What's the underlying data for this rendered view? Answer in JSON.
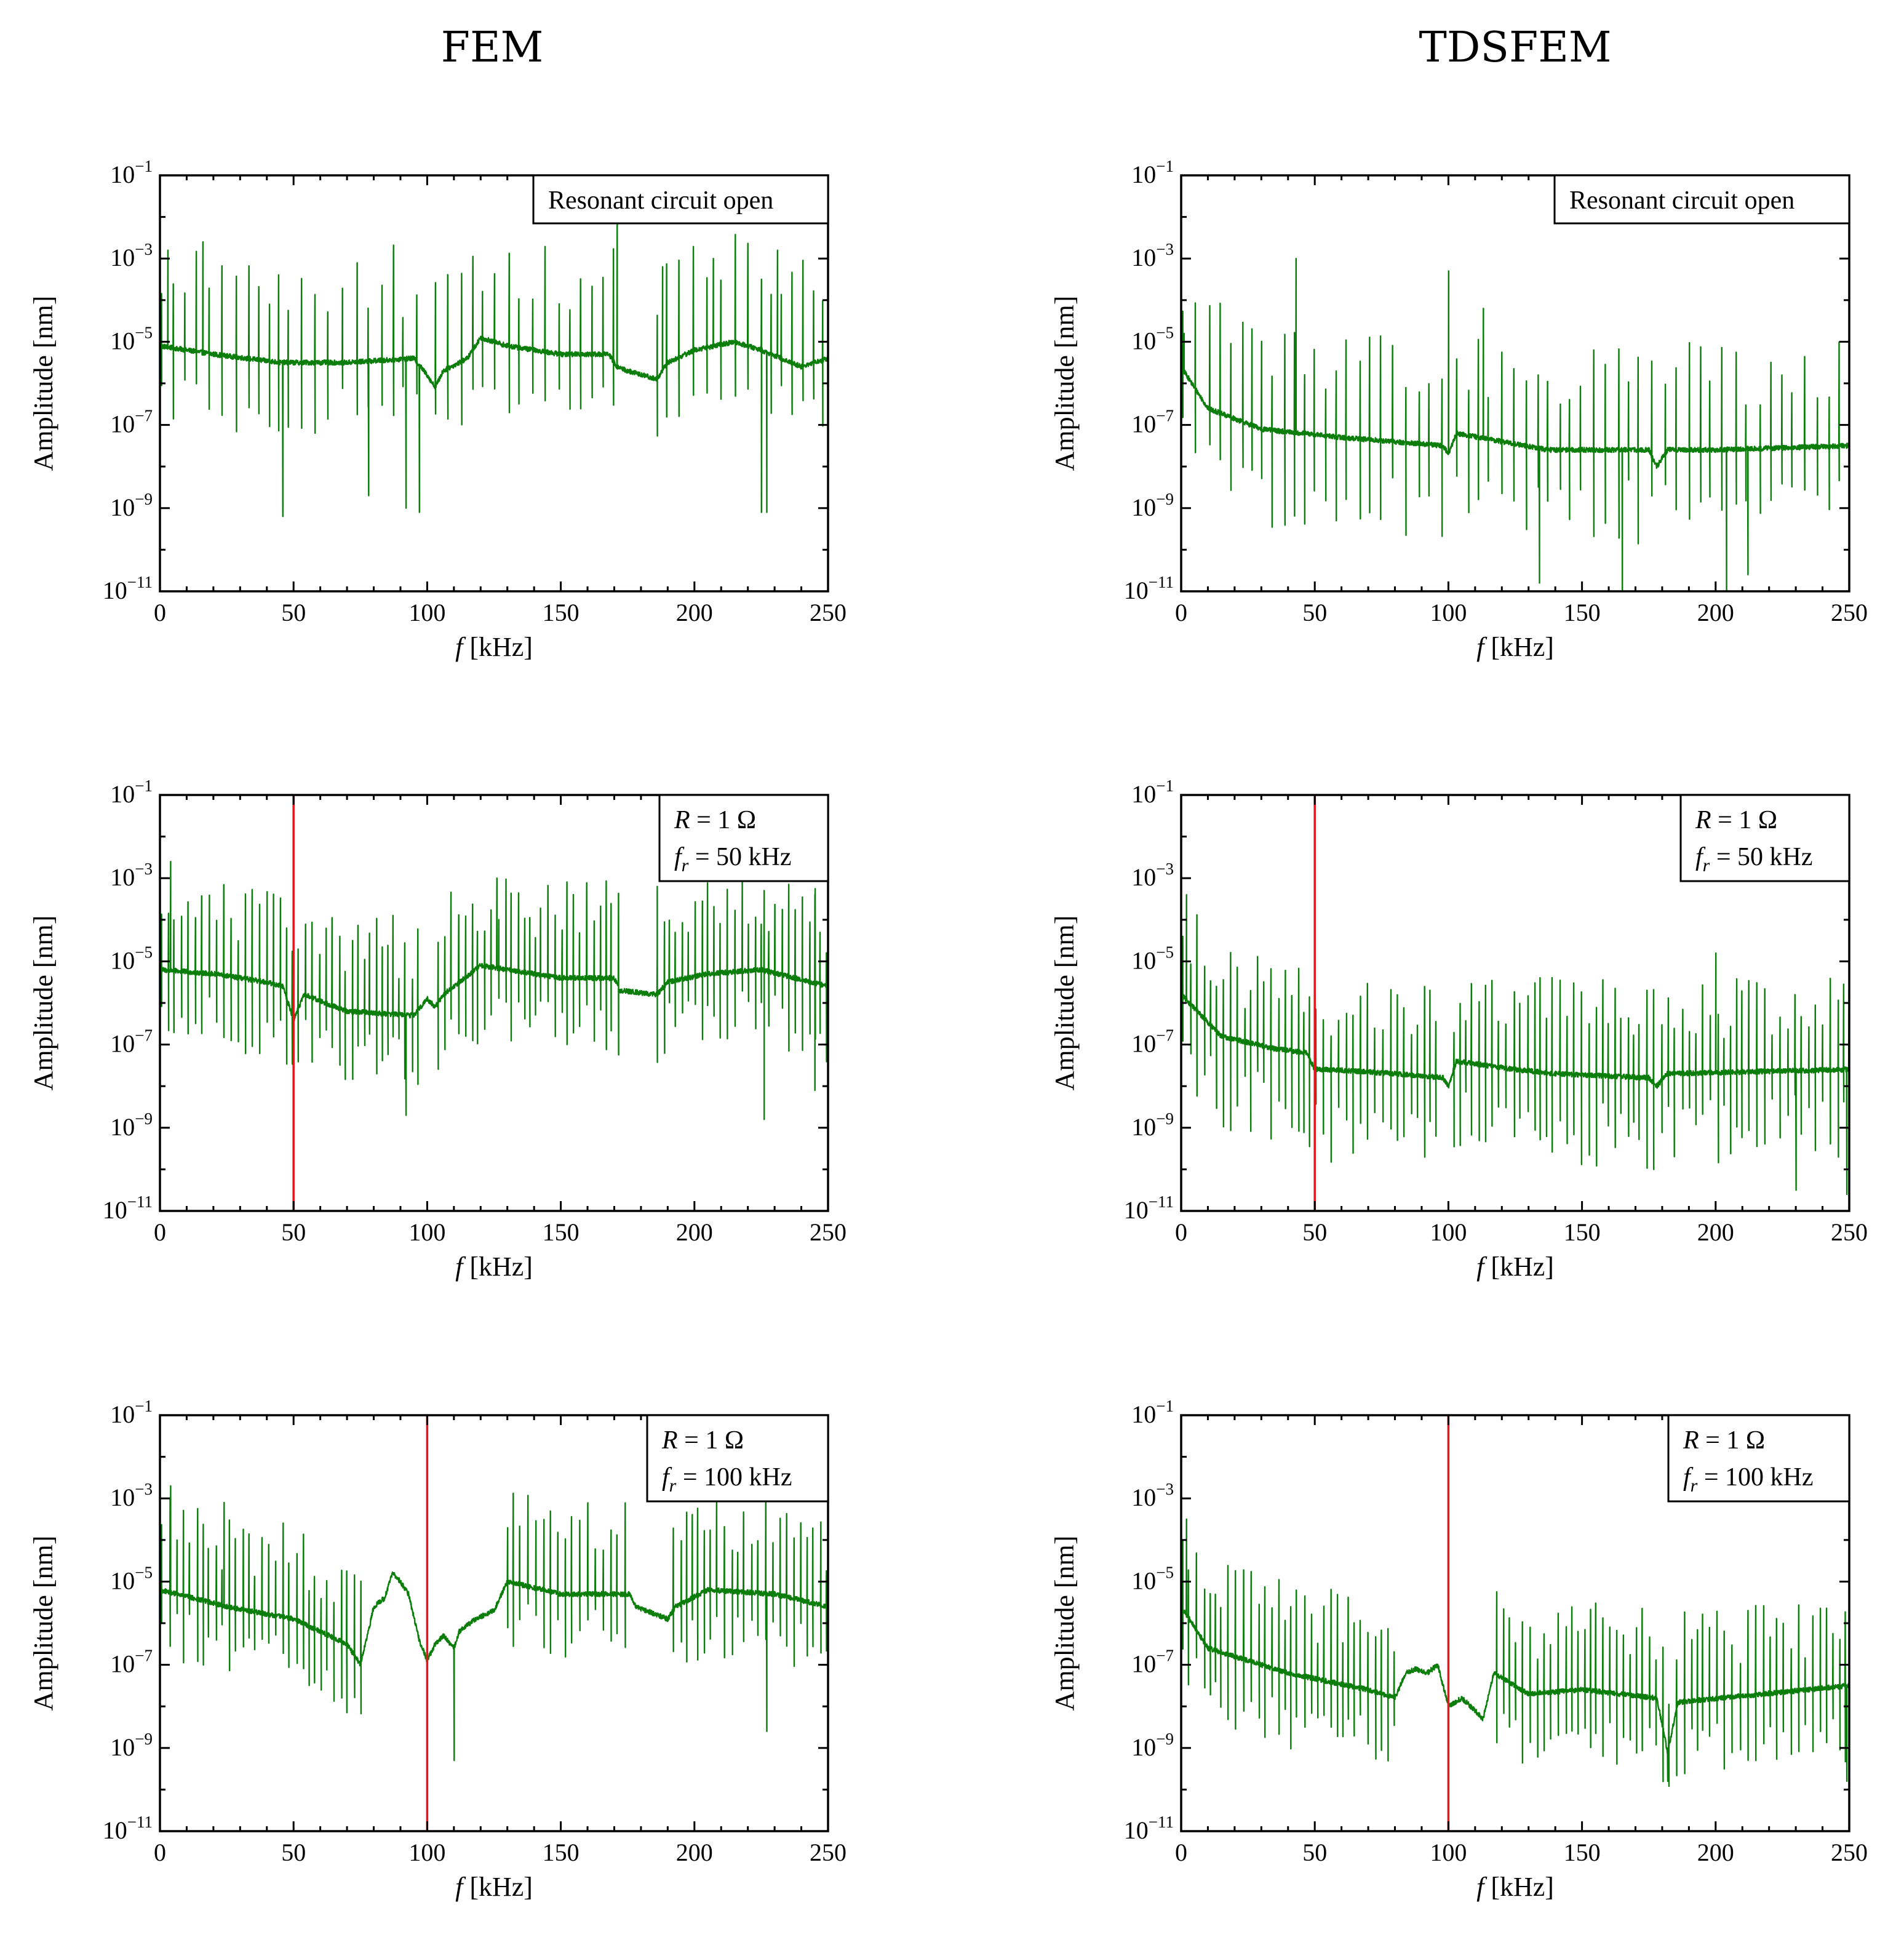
{
  "figure": {
    "column_titles": [
      "FEM",
      "TDSFEM"
    ]
  },
  "chart_data": [
    {
      "id": "fem-open",
      "type": "line",
      "column": "FEM",
      "xlabel_italic": "f",
      "xlabel_unit": "[kHz]",
      "ylabel": "Amplitude [nm]",
      "xlim": [
        0,
        250
      ],
      "ylim_log10": [
        -11,
        -1
      ],
      "x_ticks": [
        "0",
        "50",
        "100",
        "150",
        "200",
        "250"
      ],
      "y_tick_base": "10",
      "y_tick_exponents": [
        "−1",
        "−3",
        "−5",
        "−7",
        "−9",
        "−11"
      ],
      "legend": [
        "Resonant circuit open"
      ],
      "legend_italic": [],
      "marker_x": null,
      "series": [
        {
          "name": "amplitude",
          "color": "#0b7d0b",
          "profile_log10": [
            [
              0,
              -5.1
            ],
            [
              20,
              -5.3
            ],
            [
              45,
              -5.5
            ],
            [
              70,
              -5.5
            ],
            [
              95,
              -5.4
            ],
            [
              100,
              -5.8
            ],
            [
              103,
              -6.1
            ],
            [
              106,
              -5.7
            ],
            [
              115,
              -5.4
            ],
            [
              120,
              -4.9
            ],
            [
              130,
              -5.1
            ],
            [
              150,
              -5.3
            ],
            [
              168,
              -5.3
            ],
            [
              171,
              -5.6
            ],
            [
              175,
              -5.7
            ],
            [
              186,
              -5.9
            ],
            [
              190,
              -5.5
            ],
            [
              200,
              -5.2
            ],
            [
              215,
              -5.0
            ],
            [
              225,
              -5.2
            ],
            [
              240,
              -5.6
            ],
            [
              250,
              -5.4
            ]
          ],
          "peak_spacing_khz": 4.4,
          "peak_height_decades": [
            1.0,
            2.7
          ],
          "dip_depth_decades": [
            0.6,
            1.8
          ],
          "quiet_ranges": [
            [
              98,
              103
            ],
            [
              172,
              186
            ]
          ],
          "spikes": [
            [
              3,
              -2.8
            ],
            [
              16,
              -2.6
            ],
            [
              171,
              -1.8
            ],
            [
              188,
              -3.2
            ],
            [
              207,
              -3.0
            ],
            [
              231,
              -2.8
            ]
          ],
          "deep_dips": [
            [
              46,
              -9.2
            ],
            [
              78,
              -8.7
            ],
            [
              92,
              -9.0
            ],
            [
              97,
              -9.1
            ],
            [
              225,
              -9.1
            ],
            [
              227,
              -9.1
            ]
          ]
        }
      ]
    },
    {
      "id": "tdsfem-open",
      "type": "line",
      "column": "TDSFEM",
      "xlabel_italic": "f",
      "xlabel_unit": "[kHz]",
      "ylabel": "Amplitude [nm]",
      "xlim": [
        0,
        250
      ],
      "ylim_log10": [
        -11,
        -1
      ],
      "x_ticks": [
        "0",
        "50",
        "100",
        "150",
        "200",
        "250"
      ],
      "y_tick_base": "10",
      "y_tick_exponents": [
        "−1",
        "−3",
        "−5",
        "−7",
        "−9",
        "−11"
      ],
      "legend": [
        "Resonant circuit open"
      ],
      "legend_italic": [],
      "marker_x": null,
      "series": [
        {
          "name": "amplitude",
          "color": "#0b7d0b",
          "profile_log10": [
            [
              0,
              -5.6
            ],
            [
              10,
              -6.6
            ],
            [
              30,
              -7.1
            ],
            [
              60,
              -7.3
            ],
            [
              98,
              -7.5
            ],
            [
              100,
              -7.7
            ],
            [
              103,
              -7.2
            ],
            [
              120,
              -7.4
            ],
            [
              137,
              -7.6
            ],
            [
              150,
              -7.6
            ],
            [
              175,
              -7.6
            ],
            [
              178,
              -8.0
            ],
            [
              182,
              -7.6
            ],
            [
              200,
              -7.6
            ],
            [
              250,
              -7.5
            ]
          ],
          "peak_spacing_khz": 4.4,
          "peak_height_decades": [
            1.0,
            2.6
          ],
          "dip_depth_decades": [
            0.7,
            2.3
          ],
          "quiet_ranges": [
            [
              98,
              102
            ]
          ],
          "spikes": [
            [
              1,
              -4.8
            ],
            [
              43,
              -3.0
            ],
            [
              100,
              -3.3
            ],
            [
              113,
              -4.2
            ]
          ],
          "deep_dips": [
            [
              134,
              -10.8
            ],
            [
              165,
              -11.0
            ],
            [
              204,
              -11.0
            ],
            [
              212,
              -10.6
            ]
          ]
        }
      ]
    },
    {
      "id": "fem-50",
      "type": "line",
      "column": "FEM",
      "xlabel_italic": "f",
      "xlabel_unit": "[kHz]",
      "ylabel": "Amplitude [nm]",
      "xlim": [
        0,
        250
      ],
      "ylim_log10": [
        -11,
        -1
      ],
      "x_ticks": [
        "0",
        "50",
        "100",
        "150",
        "200",
        "250"
      ],
      "y_tick_base": "10",
      "y_tick_exponents": [
        "−1",
        "−3",
        "−5",
        "−7",
        "−9",
        "−11"
      ],
      "legend": [
        "R = 1 Ω",
        "fr = 50 kHz"
      ],
      "legend_italic": [
        "R",
        "f"
      ],
      "marker_x": 50,
      "series": [
        {
          "name": "amplitude",
          "color": "#0b7d0b",
          "profile_log10": [
            [
              0,
              -5.2
            ],
            [
              20,
              -5.3
            ],
            [
              40,
              -5.5
            ],
            [
              46,
              -5.6
            ],
            [
              50,
              -6.4
            ],
            [
              54,
              -5.8
            ],
            [
              70,
              -6.2
            ],
            [
              95,
              -6.3
            ],
            [
              100,
              -5.9
            ],
            [
              103,
              -6.1
            ],
            [
              106,
              -5.8
            ],
            [
              120,
              -5.1
            ],
            [
              150,
              -5.4
            ],
            [
              170,
              -5.4
            ],
            [
              172,
              -5.7
            ],
            [
              186,
              -5.8
            ],
            [
              190,
              -5.5
            ],
            [
              205,
              -5.3
            ],
            [
              225,
              -5.2
            ],
            [
              250,
              -5.6
            ]
          ],
          "peak_spacing_khz": 2.3,
          "peak_height_decades": [
            0.8,
            2.4
          ],
          "dip_depth_decades": [
            0.5,
            1.8
          ],
          "quiet_ranges": [
            [
              98,
              104
            ],
            [
              172,
              186
            ]
          ],
          "spikes": [
            [
              4,
              -2.6
            ],
            [
              126,
              -3.0
            ],
            [
              186,
              -3.2
            ],
            [
              226,
              -3.3
            ],
            [
              245,
              -3.4
            ]
          ],
          "deep_dips": [
            [
              92,
              -8.7
            ],
            [
              226,
              -8.8
            ],
            [
              245,
              -8.1
            ]
          ]
        }
      ]
    },
    {
      "id": "tdsfem-50",
      "type": "line",
      "column": "TDSFEM",
      "xlabel_italic": "f",
      "xlabel_unit": "[kHz]",
      "ylabel": "Amplitude [nm]",
      "xlim": [
        0,
        250
      ],
      "ylim_log10": [
        -11,
        -1
      ],
      "x_ticks": [
        "0",
        "50",
        "100",
        "150",
        "200",
        "250"
      ],
      "y_tick_base": "10",
      "y_tick_exponents": [
        "−1",
        "−3",
        "−5",
        "−7",
        "−9",
        "−11"
      ],
      "legend": [
        "R = 1 Ω",
        "fr = 50 kHz"
      ],
      "legend_italic": [
        "R",
        "f"
      ],
      "marker_x": 50,
      "series": [
        {
          "name": "amplitude",
          "color": "#0b7d0b",
          "profile_log10": [
            [
              0,
              -5.8
            ],
            [
              15,
              -6.8
            ],
            [
              35,
              -7.1
            ],
            [
              47,
              -7.2
            ],
            [
              50,
              -7.6
            ],
            [
              55,
              -7.6
            ],
            [
              80,
              -7.7
            ],
            [
              98,
              -7.8
            ],
            [
              100,
              -8.0
            ],
            [
              103,
              -7.4
            ],
            [
              125,
              -7.6
            ],
            [
              140,
              -7.7
            ],
            [
              175,
              -7.8
            ],
            [
              178,
              -8.0
            ],
            [
              182,
              -7.7
            ],
            [
              250,
              -7.6
            ]
          ],
          "peak_spacing_khz": 2.5,
          "peak_height_decades": [
            0.8,
            2.3
          ],
          "dip_depth_decades": [
            0.6,
            2.2
          ],
          "quiet_ranges": [
            [
              98,
              102
            ]
          ],
          "spikes": [
            [
              2,
              -3.4
            ],
            [
              200,
              -4.8
            ]
          ],
          "deep_dips": [
            [
              230,
              -10.5
            ],
            [
              249,
              -10.6
            ]
          ]
        }
      ]
    },
    {
      "id": "fem-100",
      "type": "line",
      "column": "FEM",
      "xlabel_italic": "f",
      "xlabel_unit": "[kHz]",
      "ylabel": "Amplitude [nm]",
      "xlim": [
        0,
        250
      ],
      "ylim_log10": [
        -11,
        -1
      ],
      "x_ticks": [
        "0",
        "50",
        "100",
        "150",
        "200",
        "250"
      ],
      "y_tick_base": "10",
      "y_tick_exponents": [
        "−1",
        "−3",
        "−5",
        "−7",
        "−9",
        "−11"
      ],
      "legend": [
        "R = 1 Ω",
        "fr = 100 kHz"
      ],
      "legend_italic": [
        "R",
        "f"
      ],
      "marker_x": 100,
      "series": [
        {
          "name": "amplitude",
          "color": "#0b7d0b",
          "profile_log10": [
            [
              0,
              -5.2
            ],
            [
              25,
              -5.6
            ],
            [
              50,
              -5.9
            ],
            [
              70,
              -6.5
            ],
            [
              75,
              -7.0
            ],
            [
              78,
              -6.2
            ],
            [
              80,
              -5.6
            ],
            [
              84,
              -5.4
            ],
            [
              87,
              -4.8
            ],
            [
              90,
              -5.0
            ],
            [
              93,
              -5.3
            ],
            [
              97,
              -6.4
            ],
            [
              100,
              -6.9
            ],
            [
              103,
              -6.5
            ],
            [
              106,
              -6.3
            ],
            [
              110,
              -6.6
            ],
            [
              112,
              -6.2
            ],
            [
              118,
              -5.9
            ],
            [
              125,
              -5.7
            ],
            [
              130,
              -5.0
            ],
            [
              150,
              -5.3
            ],
            [
              176,
              -5.3
            ],
            [
              178,
              -5.6
            ],
            [
              190,
              -5.9
            ],
            [
              193,
              -5.6
            ],
            [
              205,
              -5.2
            ],
            [
              230,
              -5.3
            ],
            [
              250,
              -5.6
            ]
          ],
          "peak_spacing_khz": 2.5,
          "peak_height_decades": [
            0.8,
            2.3
          ],
          "dip_depth_decades": [
            0.4,
            1.7
          ],
          "quiet_ranges": [
            [
              76,
              130
            ],
            [
              176,
              192
            ]
          ],
          "spikes": [
            [
              4,
              -2.7
            ],
            [
              24,
              -3.1
            ]
          ],
          "deep_dips": [
            [
              110,
              -9.3
            ],
            [
              227,
              -8.6
            ]
          ]
        }
      ]
    },
    {
      "id": "tdsfem-100",
      "type": "line",
      "column": "TDSFEM",
      "xlabel_italic": "f",
      "xlabel_unit": "[kHz]",
      "ylabel": "Amplitude [nm]",
      "xlim": [
        0,
        250
      ],
      "ylim_log10": [
        -11,
        -1
      ],
      "x_ticks": [
        "0",
        "50",
        "100",
        "150",
        "200",
        "250"
      ],
      "y_tick_base": "10",
      "y_tick_exponents": [
        "−1",
        "−3",
        "−5",
        "−7",
        "−9",
        "−11"
      ],
      "legend": [
        "R = 1 Ω",
        "fr = 100 kHz"
      ],
      "legend_italic": [
        "R",
        "f"
      ],
      "marker_x": 100,
      "series": [
        {
          "name": "amplitude",
          "color": "#0b7d0b",
          "profile_log10": [
            [
              0,
              -5.6
            ],
            [
              10,
              -6.6
            ],
            [
              40,
              -7.2
            ],
            [
              70,
              -7.6
            ],
            [
              80,
              -7.8
            ],
            [
              84,
              -7.2
            ],
            [
              88,
              -7.1
            ],
            [
              92,
              -7.2
            ],
            [
              96,
              -7.0
            ],
            [
              100,
              -8.0
            ],
            [
              105,
              -7.8
            ],
            [
              110,
              -8.1
            ],
            [
              113,
              -8.3
            ],
            [
              117,
              -7.2
            ],
            [
              130,
              -7.7
            ],
            [
              150,
              -7.6
            ],
            [
              178,
              -7.8
            ],
            [
              182,
              -9.1
            ],
            [
              186,
              -7.9
            ],
            [
              250,
              -7.5
            ]
          ],
          "peak_spacing_khz": 2.5,
          "peak_height_decades": [
            0.8,
            2.2
          ],
          "dip_depth_decades": [
            0.6,
            1.8
          ],
          "quiet_ranges": [
            [
              80,
              118
            ]
          ],
          "spikes": [
            [
              2,
              -3.5
            ]
          ],
          "deep_dips": [
            [
              182,
              -9.8
            ],
            [
              249,
              -9.8
            ]
          ]
        }
      ]
    }
  ]
}
